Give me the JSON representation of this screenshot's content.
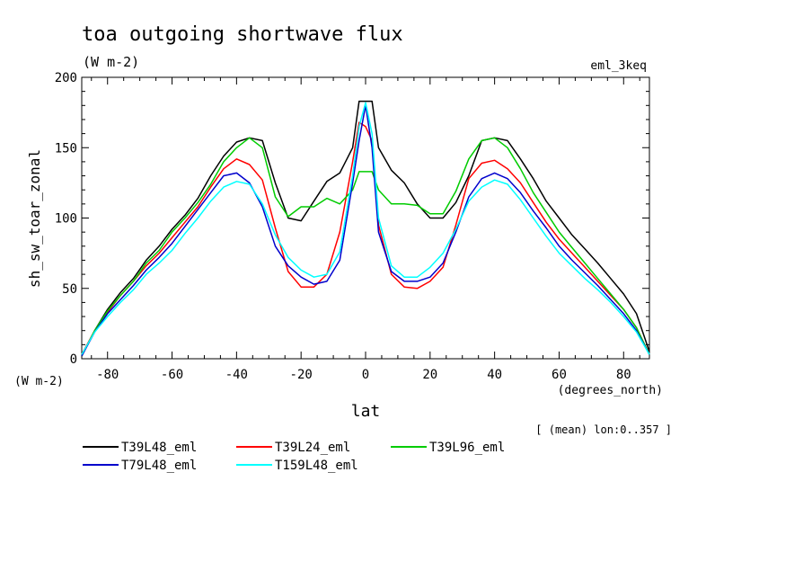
{
  "chart_data": {
    "type": "line",
    "title": "toa outgoing shortwave flux",
    "subtitle": "(W m-2)",
    "experiment": "eml_3keq",
    "ylabel": "sh_sw_toar_zonal",
    "yunit": "(W m-2)",
    "xlabel": "lat",
    "xunit": "(degrees_north)",
    "note": "[ (mean) lon:0..357 ]",
    "xlim": [
      -88,
      88
    ],
    "ylim": [
      0,
      200
    ],
    "xticks": [
      -80,
      -60,
      -40,
      -20,
      0,
      20,
      40,
      60,
      80
    ],
    "yticks": [
      0,
      50,
      100,
      150,
      200
    ],
    "grid": false,
    "legend_position": "bottom-left",
    "x": [
      -88,
      -84,
      -80,
      -76,
      -72,
      -68,
      -64,
      -60,
      -56,
      -52,
      -48,
      -44,
      -40,
      -36,
      -32,
      -28,
      -24,
      -20,
      -16,
      -12,
      -8,
      -4,
      -2,
      0,
      2,
      4,
      8,
      12,
      16,
      20,
      24,
      28,
      32,
      36,
      40,
      44,
      48,
      52,
      56,
      60,
      64,
      68,
      72,
      76,
      80,
      84,
      88
    ],
    "series": [
      {
        "name": "T39L48_eml",
        "color": "#000000",
        "values": [
          2,
          20,
          35,
          47,
          57,
          70,
          80,
          92,
          102,
          114,
          130,
          144,
          154,
          157,
          155,
          125,
          100,
          98,
          112,
          126,
          132,
          150,
          183,
          183,
          183,
          150,
          134,
          125,
          110,
          100,
          100,
          111,
          130,
          155,
          157,
          155,
          142,
          128,
          112,
          100,
          88,
          78,
          68,
          57,
          46,
          32,
          5
        ]
      },
      {
        "name": "T39L24_eml",
        "color": "#ff0000",
        "values": [
          3,
          20,
          33,
          45,
          55,
          66,
          75,
          86,
          97,
          108,
          122,
          135,
          142,
          138,
          127,
          93,
          62,
          51,
          51,
          60,
          90,
          140,
          168,
          165,
          155,
          95,
          60,
          51,
          50,
          55,
          65,
          95,
          128,
          139,
          141,
          135,
          125,
          111,
          97,
          85,
          75,
          65,
          55,
          45,
          35,
          22,
          3
        ]
      },
      {
        "name": "T39L96_eml",
        "color": "#00cc00",
        "values": [
          2,
          20,
          34,
          45,
          55,
          68,
          77,
          90,
          100,
          111,
          124,
          140,
          150,
          157,
          150,
          115,
          101,
          108,
          108,
          114,
          110,
          120,
          133,
          133,
          133,
          120,
          110,
          110,
          109,
          103,
          103,
          119,
          142,
          155,
          157,
          150,
          135,
          118,
          104,
          90,
          79,
          68,
          57,
          46,
          35,
          22,
          3
        ]
      },
      {
        "name": "T79L48_eml",
        "color": "#0000cc",
        "values": [
          2,
          19,
          32,
          42,
          52,
          63,
          72,
          82,
          94,
          106,
          118,
          130,
          132,
          125,
          108,
          80,
          66,
          58,
          53,
          55,
          70,
          125,
          155,
          180,
          150,
          90,
          62,
          55,
          55,
          58,
          68,
          90,
          115,
          128,
          132,
          128,
          118,
          105,
          93,
          80,
          70,
          61,
          52,
          42,
          32,
          20,
          3
        ]
      },
      {
        "name": "T159L48_eml",
        "color": "#00ffff",
        "values": [
          3,
          19,
          30,
          40,
          49,
          60,
          68,
          77,
          89,
          100,
          112,
          122,
          126,
          124,
          110,
          88,
          72,
          63,
          58,
          60,
          76,
          130,
          165,
          182,
          160,
          100,
          66,
          58,
          58,
          65,
          75,
          92,
          112,
          122,
          127,
          124,
          113,
          100,
          87,
          75,
          66,
          57,
          49,
          40,
          30,
          19,
          3
        ]
      }
    ]
  }
}
